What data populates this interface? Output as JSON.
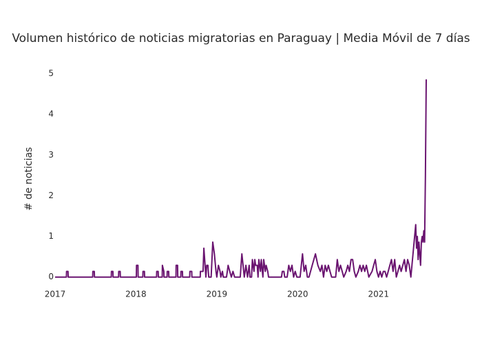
{
  "chart_data": {
    "type": "line",
    "title": "Volumen histórico de noticias migratorias en Paraguay | Media Móvil de 7 días",
    "y_label": "# de noticias",
    "xlim": [
      2017,
      2021.59
    ],
    "xticks": [
      2017,
      2018,
      2019,
      2020,
      2021
    ],
    "ylim": [
      -0.14,
      5.12
    ],
    "yticks": [
      0,
      1,
      2,
      3,
      4,
      5
    ],
    "grid": false,
    "series": [
      {
        "name": "Media Móvil de 7 días",
        "color": "#6a1470",
        "x": [
          2017,
          2017.14,
          2017.142,
          2017.16,
          2017.162,
          2017.465,
          2017.467,
          2017.485,
          2017.487,
          2017.695,
          2017.697,
          2017.715,
          2017.717,
          2017.785,
          2017.787,
          2017.805,
          2017.807,
          2018.005,
          2018.007,
          2018.025,
          2018.027,
          2018.085,
          2018.087,
          2018.105,
          2018.107,
          2018.255,
          2018.257,
          2018.275,
          2018.277,
          2018.325,
          2018.327,
          2018.345,
          2018.347,
          2018.385,
          2018.387,
          2018.405,
          2018.407,
          2018.495,
          2018.497,
          2018.515,
          2018.517,
          2018.555,
          2018.557,
          2018.575,
          2018.577,
          2018.665,
          2018.667,
          2018.69,
          2018.692,
          2018.795,
          2018.797,
          2018.83,
          2018.84,
          2018.855,
          2018.865,
          2018.875,
          2018.89,
          2018.9,
          2018.93,
          2018.95,
          2018.97,
          2018.99,
          2019.0,
          2019.02,
          2019.04,
          2019.05,
          2019.07,
          2019.08,
          2019.12,
          2019.14,
          2019.16,
          2019.18,
          2019.2,
          2019.22,
          2019.29,
          2019.31,
          2019.34,
          2019.36,
          2019.38,
          2019.4,
          2019.41,
          2019.43,
          2019.44,
          2019.46,
          2019.47,
          2019.48,
          2019.5,
          2019.51,
          2019.52,
          2019.54,
          2019.55,
          2019.57,
          2019.58,
          2019.6,
          2019.61,
          2019.63,
          2019.64,
          2019.8,
          2019.81,
          2019.83,
          2019.84,
          2019.87,
          2019.89,
          2019.91,
          2019.93,
          2019.95,
          2019.97,
          2019.99,
          2020.03,
          2020.06,
          2020.08,
          2020.1,
          2020.12,
          2020.14,
          2020.18,
          2020.2,
          2020.22,
          2020.25,
          2020.28,
          2020.3,
          2020.32,
          2020.34,
          2020.36,
          2020.38,
          2020.4,
          2020.42,
          2020.44,
          2020.47,
          2020.49,
          2020.51,
          2020.53,
          2020.57,
          2020.6,
          2020.62,
          2020.64,
          2020.66,
          2020.68,
          2020.7,
          2020.72,
          2020.75,
          2020.77,
          2020.79,
          2020.81,
          2020.83,
          2020.85,
          2020.88,
          2020.92,
          2020.94,
          2020.96,
          2020.98,
          2021.0,
          2021.02,
          2021.04,
          2021.06,
          2021.08,
          2021.1,
          2021.12,
          2021.14,
          2021.16,
          2021.18,
          2021.2,
          2021.22,
          2021.24,
          2021.26,
          2021.28,
          2021.3,
          2021.32,
          2021.34,
          2021.36,
          2021.38,
          2021.4,
          2021.42,
          2021.44,
          2021.46,
          2021.47,
          2021.48,
          2021.49,
          2021.5,
          2021.51,
          2021.52,
          2021.53,
          2021.54,
          2021.55,
          2021.56,
          2021.57,
          2021.58,
          2021.59
        ],
        "values": [
          0,
          0,
          0.14,
          0.14,
          0,
          0,
          0.14,
          0.14,
          0,
          0,
          0.14,
          0.14,
          0,
          0,
          0.14,
          0.14,
          0,
          0,
          0.29,
          0.29,
          0,
          0,
          0.14,
          0.14,
          0,
          0,
          0.14,
          0.14,
          0,
          0,
          0.29,
          0.14,
          0,
          0,
          0.14,
          0.14,
          0,
          0,
          0.29,
          0.29,
          0,
          0,
          0.14,
          0.14,
          0,
          0,
          0.14,
          0.14,
          0,
          0,
          0.14,
          0.14,
          0.71,
          0.29,
          0,
          0.29,
          0.29,
          0,
          0,
          0.86,
          0.57,
          0.14,
          0,
          0.29,
          0.14,
          0,
          0.14,
          0,
          0,
          0.29,
          0.14,
          0,
          0.14,
          0,
          0,
          0.57,
          0,
          0.29,
          0,
          0.29,
          0,
          0,
          0.43,
          0.14,
          0.43,
          0.29,
          0.29,
          0,
          0.43,
          0.14,
          0.43,
          0,
          0.43,
          0.14,
          0.29,
          0.14,
          0,
          0,
          0.14,
          0.14,
          0,
          0,
          0.29,
          0.14,
          0.29,
          0,
          0.14,
          0,
          0,
          0.57,
          0.14,
          0.29,
          0,
          0,
          0.29,
          0.43,
          0.57,
          0.29,
          0.14,
          0.29,
          0,
          0.29,
          0.14,
          0.29,
          0.14,
          0,
          0,
          0,
          0.43,
          0.14,
          0.29,
          0,
          0.14,
          0.29,
          0.14,
          0.43,
          0.43,
          0.14,
          0,
          0.14,
          0.29,
          0.14,
          0.29,
          0.14,
          0.29,
          0,
          0.14,
          0.29,
          0.43,
          0.14,
          0,
          0.14,
          0,
          0.14,
          0.14,
          0,
          0.14,
          0.29,
          0.43,
          0.14,
          0.43,
          0,
          0.14,
          0.29,
          0.14,
          0.29,
          0.43,
          0.14,
          0.43,
          0.29,
          0,
          0.43,
          0.86,
          1.29,
          0.71,
          1.0,
          0.43,
          0.86,
          0.57,
          0.29,
          0.86,
          1.0,
          0.86,
          1.14,
          0.86,
          2.5,
          4.86
        ]
      }
    ]
  }
}
